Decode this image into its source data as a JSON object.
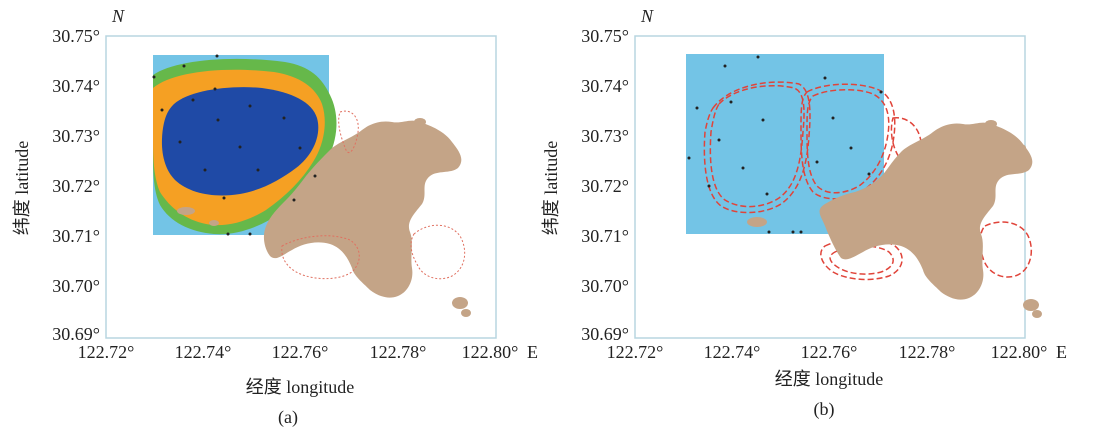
{
  "panels": [
    {
      "caption": "(a)",
      "north_label": "N",
      "east_label": "E",
      "xlabel": "经度  longitude",
      "ylabel": "纬度  latitude",
      "yticks": [
        "30.75°",
        "30.74°",
        "30.73°",
        "30.72°",
        "30.71°",
        "30.70°",
        "30.69°"
      ],
      "xticks": [
        "122.72°",
        "122.74°",
        "122.76°",
        "122.78°",
        "122.80°"
      ]
    },
    {
      "caption": "(b)",
      "north_label": "N",
      "east_label": "E",
      "xlabel": "经度  longitude",
      "ylabel": "纬度  latitude",
      "yticks": [
        "30.75°",
        "30.74°",
        "30.73°",
        "30.72°",
        "30.71°",
        "30.70°",
        "30.69°"
      ],
      "xticks": [
        "122.72°",
        "122.74°",
        "122.76°",
        "122.78°",
        "122.80°"
      ]
    }
  ],
  "map": {
    "lon_range": [
      122.72,
      122.8
    ],
    "lat_range": [
      30.69,
      30.75
    ],
    "study_area": {
      "lon": [
        122.73,
        122.765
      ],
      "lat": [
        30.71,
        30.746
      ]
    },
    "colors": {
      "sea_box": "#73c4e6",
      "land": "#c4a487",
      "green_band": "#66b84a",
      "orange_band": "#f5a023",
      "core": "#1f4aa6",
      "dashed_contour": "#e0443a",
      "dotted_contour": "#e07060",
      "frame": "#b8d6e0"
    }
  }
}
